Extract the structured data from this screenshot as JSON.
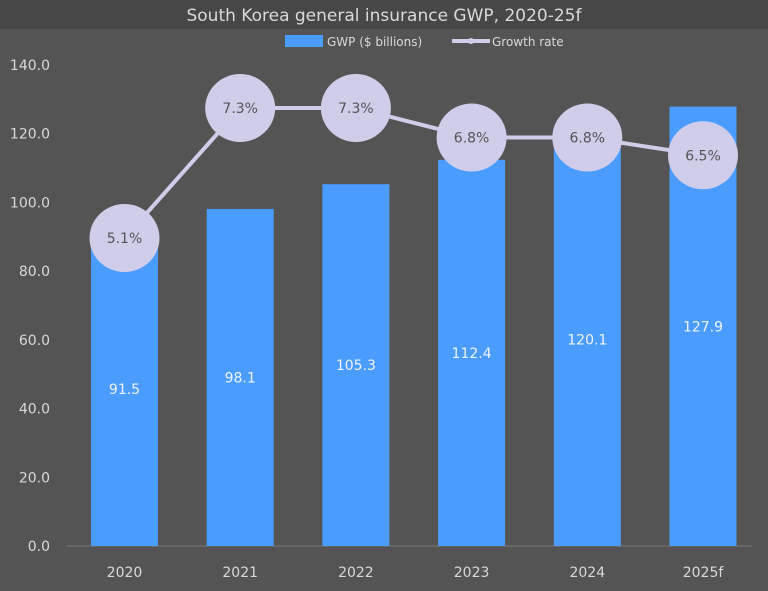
{
  "chart_data": {
    "type": "bar+line",
    "title": "South Korea general insurance GWP, 2020-25f",
    "categories": [
      "2020",
      "2021",
      "2022",
      "2023",
      "2024",
      "2025f"
    ],
    "series": [
      {
        "name": "GWP ($ billions)",
        "type": "bar",
        "values": [
          91.5,
          98.1,
          105.3,
          112.4,
          120.1,
          127.9
        ],
        "labels": [
          "91.5",
          "98.1",
          "105.3",
          "112.4",
          "120.1",
          "127.9"
        ],
        "color": "#4a9dff"
      },
      {
        "name": "Growth rate",
        "type": "line",
        "values": [
          5.1,
          7.3,
          7.3,
          6.8,
          6.8,
          6.5
        ],
        "labels": [
          "5.1%",
          "7.3%",
          "7.3%",
          "6.8%",
          "6.8%",
          "6.5%"
        ],
        "color": "#cfcdea",
        "secondary_axis_hidden": true
      }
    ],
    "ylim": [
      0,
      140
    ],
    "yticks": [
      "0.0",
      "20.0",
      "40.0",
      "60.0",
      "80.0",
      "100.0",
      "120.0",
      "140.0"
    ],
    "grid": false,
    "legend": "top-center",
    "background": "#545454",
    "title_background": "#474747"
  }
}
